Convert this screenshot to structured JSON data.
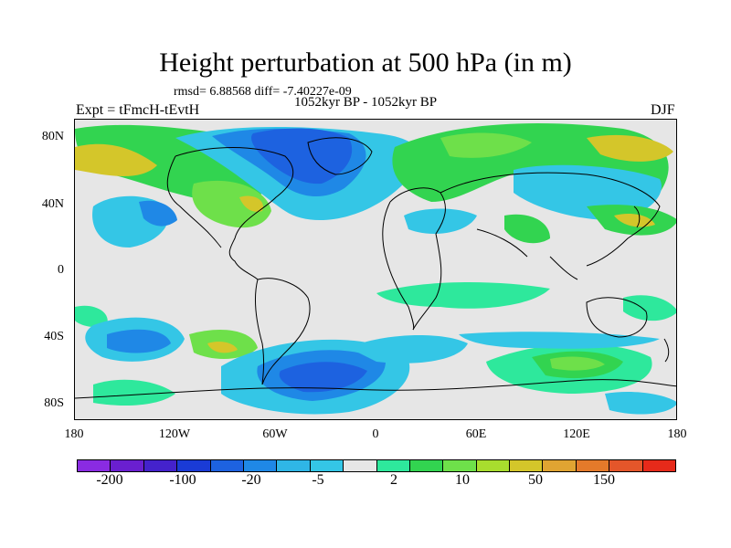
{
  "title": "Height perturbation at 500 hPa (in m)",
  "stats_line": "rmsd= 6.88568 diff= -7.40227e-09",
  "period_label": "1052kyr BP - 1052kyr BP",
  "experiment_label": "Expt = tFmcH-tEvtH",
  "season_label": "DJF",
  "lat_ticks": [
    "80N",
    "40N",
    "0",
    "40S",
    "80S"
  ],
  "lon_ticks": [
    "180",
    "120W",
    "60W",
    "0",
    "60E",
    "120E",
    "180"
  ],
  "colorbar": {
    "labels": [
      "-200",
      "-100",
      "-20",
      "-5",
      "2",
      "10",
      "50",
      "150"
    ],
    "colors": [
      "#8a2be2",
      "#6a1fd0",
      "#4422cc",
      "#1a3bd6",
      "#1d62e0",
      "#1f88e6",
      "#2fb6e6",
      "#34c6e6",
      "#e6e6e6",
      "#2ee89c",
      "#32d450",
      "#6ee04a",
      "#a8dd2e",
      "#d4c62a",
      "#e0a432",
      "#e47a2a",
      "#e4562a",
      "#e62a1a"
    ]
  },
  "map_layers": {
    "background": "#e6e6e6",
    "coastline": "#000000",
    "field_colors": {
      "strong_negative": "#1d62e0",
      "moderate_negative": "#1f88e6",
      "weak_negative": "#34c6e6",
      "weak_positive": "#2ee89c",
      "moderate_positive": "#32d450",
      "strong_positive": "#d4c62a"
    }
  }
}
